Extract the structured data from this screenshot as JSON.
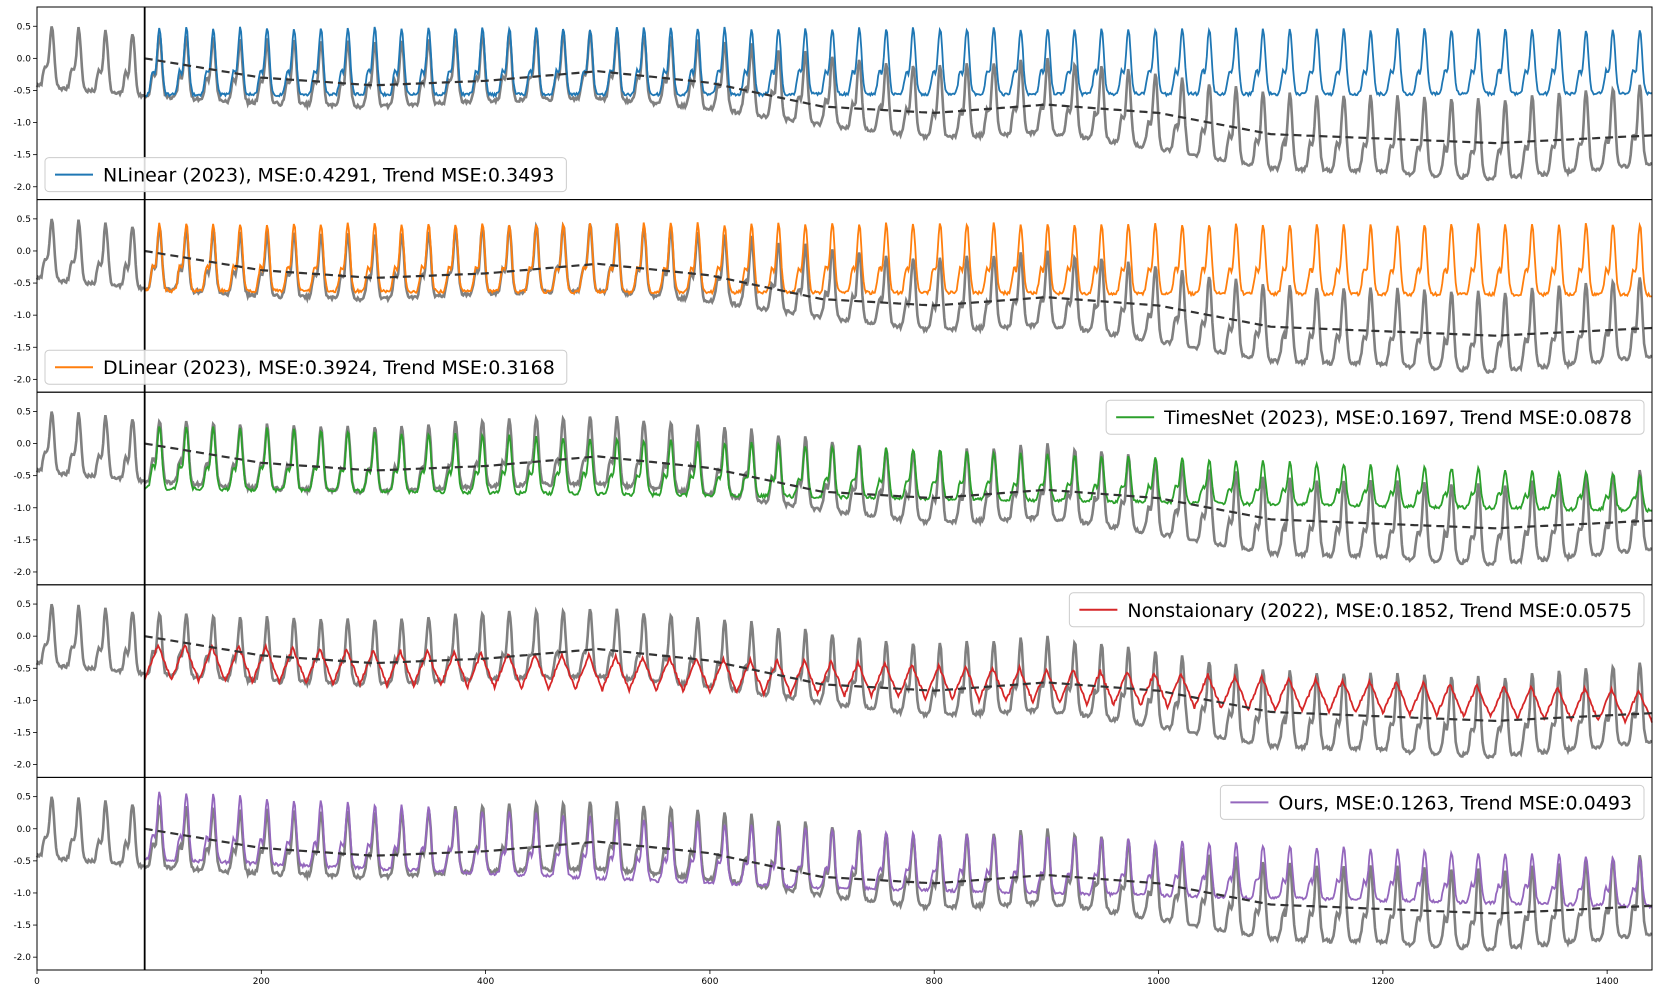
{
  "chart_data": {
    "type": "line",
    "title": "",
    "xlabel": "",
    "ylabel": "",
    "xlim": [
      0,
      1440
    ],
    "ylim": [
      -2.2,
      0.8
    ],
    "x_ticks": [
      {
        "value": 0,
        "label": "0"
      },
      {
        "value": 200,
        "label": "200"
      },
      {
        "value": 400,
        "label": "400"
      },
      {
        "value": 600,
        "label": "600"
      },
      {
        "value": 800,
        "label": "800"
      },
      {
        "value": 1000,
        "label": "1000"
      },
      {
        "value": 1200,
        "label": "1200"
      },
      {
        "value": 1400,
        "label": "1400"
      }
    ],
    "y_ticks": [
      {
        "value": 0.5,
        "label": "0.5"
      },
      {
        "value": 0.0,
        "label": "0.0"
      },
      {
        "value": -0.5,
        "label": "-0.5"
      },
      {
        "value": -1.0,
        "label": "-1.0"
      },
      {
        "value": -1.5,
        "label": "-1.5"
      },
      {
        "value": -2.0,
        "label": "-2.0"
      }
    ],
    "input_end_x": 96,
    "colors": {
      "ground_truth": "#808080",
      "trend": "#333333",
      "divider": "#000000"
    },
    "ground_truth": {
      "name": "Ground truth",
      "period": 24,
      "trend_x": [
        0,
        96,
        200,
        300,
        400,
        500,
        600,
        700,
        800,
        900,
        1000,
        1100,
        1200,
        1300,
        1440
      ],
      "trend_y": [
        -0.1,
        -0.25,
        -0.35,
        -0.4,
        -0.3,
        -0.25,
        -0.4,
        -0.65,
        -0.85,
        -0.75,
        -1.0,
        -1.3,
        -1.35,
        -1.45,
        -1.2
      ],
      "amplitude": 0.95,
      "amplitude_end": 1.25
    },
    "trend_line": {
      "name": "Trend",
      "x": [
        96,
        200,
        300,
        400,
        500,
        600,
        700,
        800,
        900,
        1000,
        1100,
        1200,
        1300,
        1440
      ],
      "y": [
        0.0,
        -0.3,
        -0.42,
        -0.35,
        -0.2,
        -0.38,
        -0.75,
        -0.85,
        -0.72,
        -0.85,
        -1.18,
        -1.25,
        -1.32,
        -1.2
      ]
    },
    "panels": [
      {
        "model": "NLinear (2023)",
        "legend": "NLinear (2023), MSE:0.4291, Trend MSE:0.3493",
        "color": "#1f77b4",
        "legend_position": "lower-left",
        "prediction": {
          "base_x": [
            96,
            1440
          ],
          "base_y": [
            -0.2,
            -0.2
          ],
          "amplitude": 1.05,
          "amplitude_end": 1.0
        }
      },
      {
        "model": "DLinear (2023)",
        "legend": "DLinear (2023), MSE:0.3924, Trend MSE:0.3168",
        "color": "#ff7f0e",
        "legend_position": "lower-left",
        "prediction": {
          "base_x": [
            96,
            1440
          ],
          "base_y": [
            -0.25,
            -0.3
          ],
          "amplitude": 1.05,
          "amplitude_end": 1.1
        }
      },
      {
        "model": "TimesNet (2023)",
        "legend": "TimesNet (2023), MSE:0.1697, Trend MSE:0.0878",
        "color": "#2ca02c",
        "legend_position": "upper-right",
        "prediction": {
          "base_x": [
            96,
            700,
            1440
          ],
          "base_y": [
            -0.35,
            -0.55,
            -0.85
          ],
          "amplitude": 1.0,
          "amplitude_end": 0.55
        }
      },
      {
        "model": "Nonstaionary (2022)",
        "legend": "Nonstaionary (2022), MSE:0.1852, Trend MSE:0.0575",
        "color": "#d62728",
        "legend_position": "upper-right",
        "prediction": {
          "base_x": [
            96,
            700,
            1440
          ],
          "base_y": [
            -0.4,
            -0.65,
            -1.1
          ],
          "amplitude": 0.55,
          "amplitude_end": 0.5
        }
      },
      {
        "model": "Ours",
        "legend": "Ours, MSE:0.1263, Trend MSE:0.0493",
        "color": "#9467bd",
        "legend_position": "upper-right",
        "prediction": {
          "base_x": [
            96,
            700,
            1440
          ],
          "base_y": [
            -0.1,
            -0.6,
            -0.95
          ],
          "amplitude": 1.05,
          "amplitude_end": 0.75
        }
      }
    ]
  }
}
